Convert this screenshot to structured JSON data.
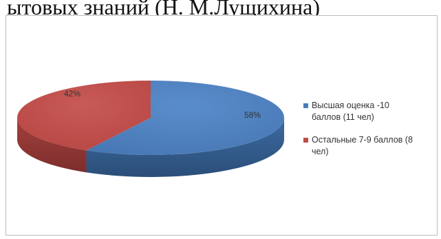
{
  "heading": "ытовых знаний (Н. М.Лущихина)",
  "chart_data": {
    "type": "pie",
    "title": "",
    "slices": [
      {
        "label": "Высшая оценка -10\nбаллов (11 чел)",
        "value": 58,
        "display": "58%",
        "color": "#4a7ebb"
      },
      {
        "label": "Остальные 7-9 баллов (8\nчел)",
        "value": 42,
        "display": "42%",
        "color": "#be4b48"
      }
    ],
    "legend_position": "right",
    "style": "3d"
  }
}
